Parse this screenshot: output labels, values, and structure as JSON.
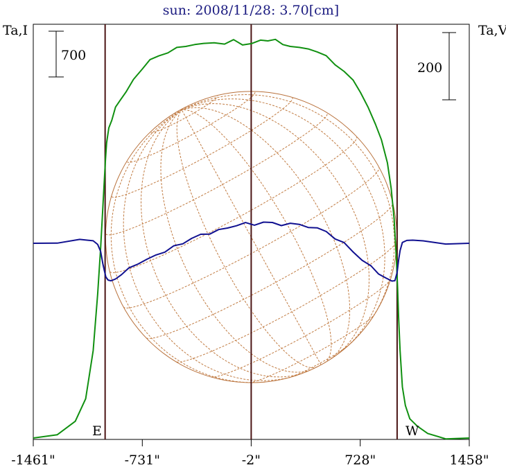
{
  "chart_data": {
    "type": "line",
    "title": "sun: 2008/11/28: 3.70[cm]",
    "left_axis_label": "Ta,I",
    "right_axis_label": "Ta,V",
    "left_scale_bar_label": "700",
    "right_scale_bar_label": "200",
    "xtick_labels": [
      "-1461\"",
      "-731\"",
      "-2\"",
      "728\"",
      "1458\""
    ],
    "xticks": [
      -1461,
      -731,
      -2,
      728,
      1458
    ],
    "xlim": [
      -1461,
      1458
    ],
    "limb_labels": {
      "east": "E",
      "west": "W"
    },
    "vertical_markers": [
      -980,
      -2,
      975
    ],
    "solar_radius_arcsec": 975,
    "series": [
      {
        "name": "",
        "color": "#109010",
        "x": [
          -1461,
          -1300,
          -1180,
          -1110,
          -1060,
          -1030,
          -1010,
          -995,
          -985,
          -978,
          -970,
          -955,
          -935,
          -910,
          -880,
          -840,
          -790,
          -730,
          -680,
          -620,
          -560,
          -500,
          -440,
          -380,
          -320,
          -250,
          -180,
          -120,
          -60,
          0,
          60,
          110,
          160,
          210,
          260,
          320,
          380,
          440,
          500,
          560,
          620,
          680,
          730,
          780,
          830,
          870,
          910,
          935,
          955,
          970,
          978,
          985,
          995,
          1010,
          1030,
          1060,
          1110,
          1180,
          1300,
          1458
        ],
        "y": [
          0.0,
          0.01,
          0.04,
          0.1,
          0.22,
          0.36,
          0.48,
          0.58,
          0.65,
          0.7,
          0.74,
          0.78,
          0.8,
          0.83,
          0.85,
          0.87,
          0.9,
          0.93,
          0.95,
          0.96,
          0.97,
          0.98,
          0.985,
          0.99,
          0.99,
          0.995,
          0.99,
          1.0,
          0.99,
          0.99,
          1.0,
          1.0,
          1.0,
          0.99,
          0.985,
          0.98,
          0.98,
          0.97,
          0.96,
          0.94,
          0.92,
          0.9,
          0.87,
          0.83,
          0.79,
          0.75,
          0.69,
          0.63,
          0.55,
          0.45,
          0.38,
          0.3,
          0.22,
          0.13,
          0.08,
          0.05,
          0.03,
          0.01,
          0.0,
          0.0
        ]
      },
      {
        "name": "",
        "color": "#101090",
        "x": [
          -1461,
          -1300,
          -1150,
          -1060,
          -1030,
          -1010,
          -995,
          -985,
          -975,
          -960,
          -940,
          -910,
          -870,
          -820,
          -760,
          -700,
          -640,
          -580,
          -520,
          -460,
          -400,
          -340,
          -280,
          -220,
          -160,
          -100,
          -40,
          20,
          80,
          140,
          200,
          260,
          320,
          380,
          440,
          500,
          560,
          620,
          680,
          740,
          800,
          850,
          900,
          940,
          960,
          975,
          985,
          995,
          1010,
          1040,
          1080,
          1150,
          1300,
          1458
        ],
        "y": [
          0.0,
          0.0,
          0.02,
          0.02,
          -0.01,
          -0.05,
          -0.12,
          -0.17,
          -0.2,
          -0.22,
          -0.23,
          -0.21,
          -0.19,
          -0.15,
          -0.12,
          -0.1,
          -0.07,
          -0.05,
          -0.02,
          0.0,
          0.03,
          0.05,
          0.06,
          0.08,
          0.09,
          0.11,
          0.12,
          0.11,
          0.13,
          0.12,
          0.11,
          0.12,
          0.11,
          0.1,
          0.09,
          0.07,
          0.03,
          0.0,
          -0.05,
          -0.1,
          -0.14,
          -0.18,
          -0.21,
          -0.23,
          -0.22,
          -0.18,
          -0.1,
          -0.04,
          0.0,
          0.02,
          0.02,
          0.01,
          0.0,
          0.0
        ]
      }
    ]
  }
}
